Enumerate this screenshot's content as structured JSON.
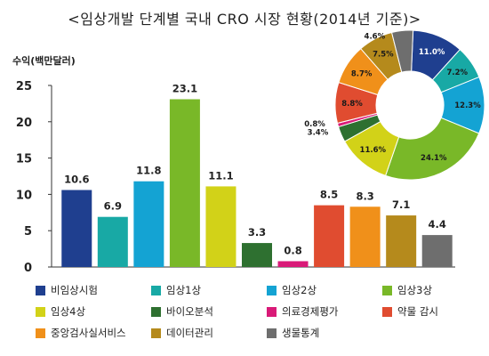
{
  "title": "<임상개발 단계별 국내 CRO 시장 현황(2014년 기준)>",
  "chart_data": [
    {
      "type": "bar",
      "ylabel": "수익(백만달러)",
      "ylim": [
        0,
        25
      ],
      "yticks": [
        0,
        5,
        10,
        15,
        20,
        25
      ],
      "grid": false,
      "legend": "bottom",
      "categories": [
        "비임상시험",
        "임상1상",
        "임상2상",
        "임상3상",
        "임상4상",
        "바이오분석",
        "의료경제평가",
        "약물 감시",
        "중앙검사실서비스",
        "데이터관리",
        "생물통계"
      ],
      "values": [
        10.6,
        6.9,
        11.8,
        23.1,
        11.1,
        3.3,
        0.8,
        8.5,
        8.3,
        7.1,
        4.4
      ],
      "value_labels": [
        "10.6",
        "6.9",
        "11.8",
        "23.1",
        "11.1",
        "3.3",
        "0.8",
        "8.5",
        "8.3",
        "7.1",
        "4.4"
      ],
      "colors": [
        "#1f3f8f",
        "#18a9a5",
        "#14a3d3",
        "#79b828",
        "#d2d218",
        "#2e7030",
        "#d91a78",
        "#e04c30",
        "#f0901a",
        "#b58a1c",
        "#6e6e6e"
      ]
    },
    {
      "type": "pie",
      "donut": true,
      "categories": [
        "비임상시험",
        "임상1상",
        "임상2상",
        "임상3상",
        "임상4상",
        "바이오분석",
        "의료경제평가",
        "약물 감시",
        "중앙검사실서비스",
        "데이터관리",
        "생물통계"
      ],
      "values": [
        11.0,
        7.2,
        12.3,
        24.1,
        11.6,
        3.4,
        0.8,
        8.8,
        8.7,
        7.5,
        4.6
      ],
      "value_labels": [
        "11.0%",
        "7.2%",
        "12.3%",
        "24.1%",
        "11.6%",
        "3.4%",
        "0.8%",
        "8.8%",
        "8.7%",
        "7.5%",
        "4.6%"
      ],
      "colors": [
        "#1f3f8f",
        "#18a9a5",
        "#14a3d3",
        "#79b828",
        "#d2d218",
        "#2e7030",
        "#d91a78",
        "#e04c30",
        "#f0901a",
        "#b58a1c",
        "#6e6e6e"
      ]
    }
  ],
  "legend_items": [
    {
      "label": "비임상시험",
      "color": "#1f3f8f"
    },
    {
      "label": "임상1상",
      "color": "#18a9a5"
    },
    {
      "label": "임상2상",
      "color": "#14a3d3"
    },
    {
      "label": "임상3상",
      "color": "#79b828"
    },
    {
      "label": "임상4상",
      "color": "#d2d218"
    },
    {
      "label": "바이오분석",
      "color": "#2e7030"
    },
    {
      "label": "의료경제평가",
      "color": "#d91a78"
    },
    {
      "label": "약물 감시",
      "color": "#e04c30"
    },
    {
      "label": "중앙검사실서비스",
      "color": "#f0901a"
    },
    {
      "label": "데이터관리",
      "color": "#b58a1c"
    },
    {
      "label": "생물통계",
      "color": "#6e6e6e"
    }
  ]
}
